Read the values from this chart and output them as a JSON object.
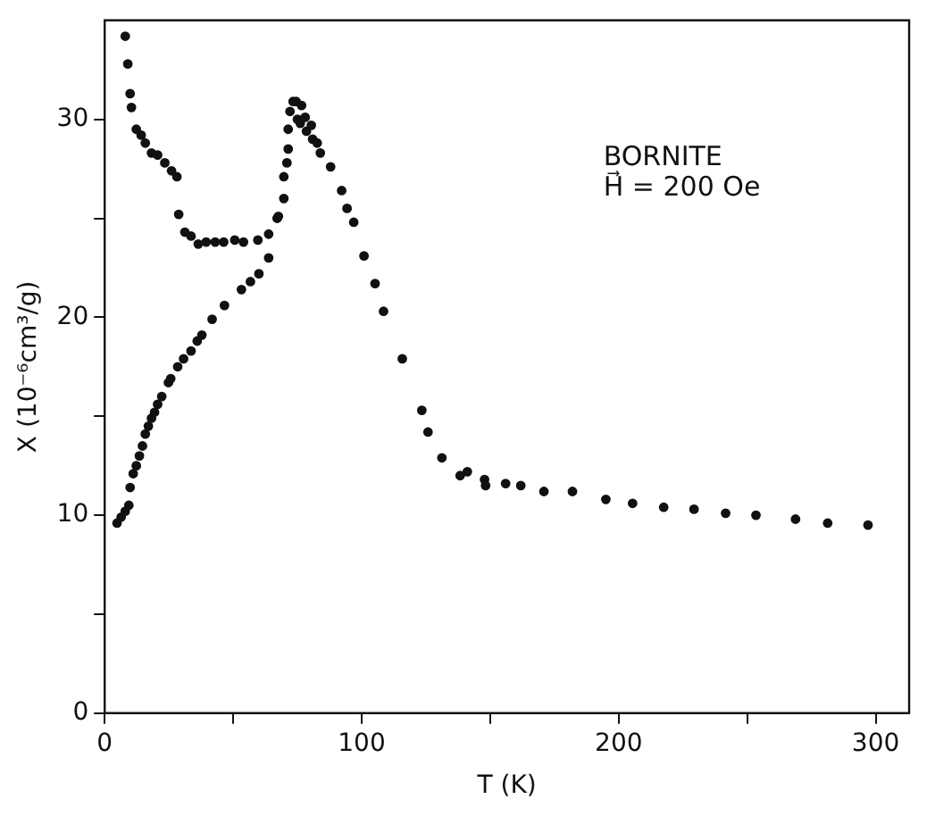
{
  "chart_data": {
    "type": "scatter",
    "xlabel": "T (K)",
    "ylabel": "X (10⁻⁶cm³/g)",
    "annotations": [
      "BORNITE",
      "H⃗ = 200 Oe"
    ],
    "xlim": [
      0,
      313
    ],
    "ylim": [
      0,
      35
    ],
    "xticks": [
      0,
      {
        "value": 50,
        "label": null
      },
      100,
      {
        "value": 150,
        "label": null
      },
      200,
      {
        "value": 250,
        "label": null
      },
      300
    ],
    "yticks": [
      0,
      {
        "value": 5,
        "label": null
      },
      10,
      {
        "value": 15,
        "label": null
      },
      20,
      {
        "value": 25,
        "label": null
      },
      30
    ],
    "grid": false,
    "legend": false,
    "marker": "circle",
    "series": [
      {
        "color": "#111111",
        "x": [
          8.0,
          9.0,
          9.9,
          10.4,
          12.3,
          14.2,
          15.8,
          18.2,
          20.6,
          23.4,
          26.0,
          28.1,
          28.8,
          31.2,
          33.6,
          36.4,
          39.5,
          43,
          46.3,
          50.6,
          54,
          59.6,
          63.8,
          67.1,
          67.6,
          69.7,
          69.7,
          70.9,
          71.4,
          71.4,
          72.1,
          73.3,
          74.5,
          75,
          76.6,
          76.1,
          78,
          78.5,
          80.4,
          80.9,
          82.7,
          83.9,
          87.9,
          92.2,
          94.3,
          96.9,
          100.9,
          105.2,
          108.5,
          115.8,
          123.4,
          125.8,
          131.2,
          138.3,
          141.1,
          147.8,
          148.2,
          156,
          161.9,
          170.9,
          182,
          195,
          205.4,
          217.5,
          229.3,
          241.6,
          253.4,
          268.8,
          281.3,
          297,
          63.8,
          60,
          56.7,
          53.2,
          46.6,
          41.8,
          37.8,
          36,
          33.6,
          30.7,
          28.4,
          25.7,
          24.8,
          22.2,
          20.6,
          19.4,
          18.2,
          17.0,
          15.8,
          14.7,
          13.5,
          12.3,
          11.1,
          9.9,
          9.4,
          8,
          6.4,
          4.8
        ],
        "values": [
          34.2,
          32.8,
          31.3,
          30.6,
          29.5,
          29.2,
          28.8,
          28.3,
          28.2,
          27.8,
          27.4,
          27.1,
          25.2,
          24.3,
          24.1,
          23.7,
          23.8,
          23.8,
          23.8,
          23.9,
          23.8,
          23.9,
          24.2,
          25.0,
          25.1,
          26.0,
          27.1,
          27.8,
          28.5,
          29.5,
          30.4,
          30.9,
          30.9,
          30.0,
          30.7,
          29.8,
          30.1,
          29.4,
          29.7,
          29.0,
          28.8,
          28.3,
          27.6,
          26.4,
          25.5,
          24.8,
          23.1,
          21.7,
          20.3,
          17.9,
          15.3,
          14.2,
          12.9,
          12.0,
          12.2,
          11.8,
          11.5,
          11.6,
          11.5,
          11.2,
          11.2,
          10.8,
          10.6,
          10.4,
          10.3,
          10.1,
          10.0,
          9.8,
          9.6,
          9.5,
          23.0,
          22.2,
          21.8,
          21.4,
          20.6,
          19.9,
          19.1,
          18.8,
          18.3,
          17.9,
          17.5,
          16.9,
          16.7,
          16.0,
          15.6,
          15.2,
          14.9,
          14.5,
          14.1,
          13.5,
          13.0,
          12.5,
          12.1,
          11.4,
          10.5,
          10.2,
          9.9,
          9.6
        ]
      }
    ]
  }
}
